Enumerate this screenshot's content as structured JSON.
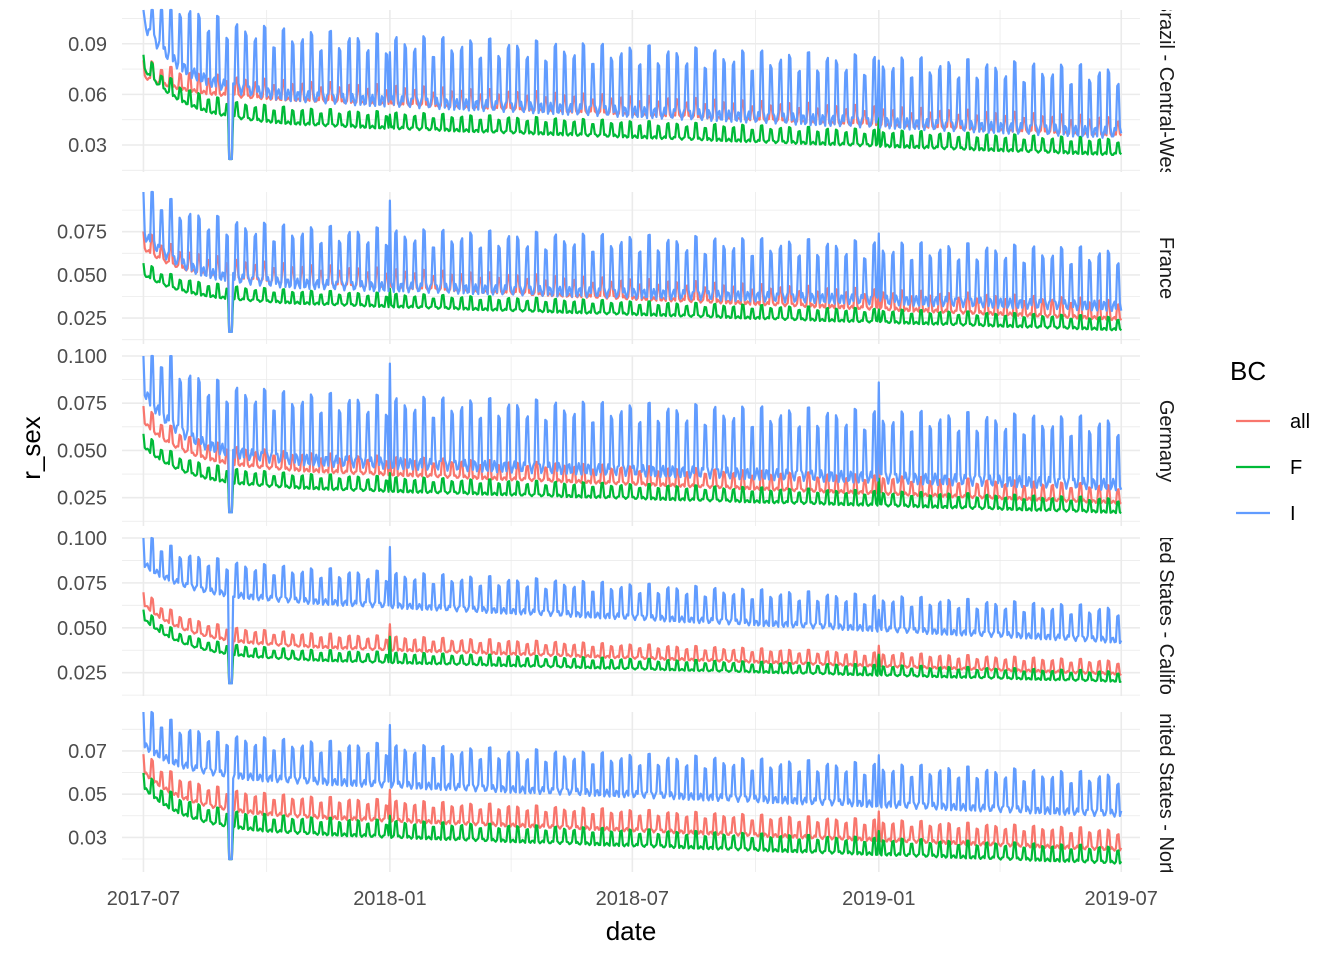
{
  "chart_data": {
    "type": "line",
    "xlabel": "date",
    "ylabel": "r_sex",
    "legend": {
      "title": "BC",
      "position": "right",
      "items": [
        {
          "name": "all",
          "color": "#F8766D"
        },
        {
          "name": "F",
          "color": "#00BA38"
        },
        {
          "name": "I",
          "color": "#619CFF"
        }
      ]
    },
    "x_ticks": [
      "2017-07",
      "2018-01",
      "2018-07",
      "2019-01",
      "2019-07"
    ],
    "x_range": [
      "2017-06-15",
      "2019-07-15"
    ],
    "grid": true,
    "facets": [
      {
        "strip": "Brazil - Central-West",
        "ylim": [
          0.014,
          0.11
        ],
        "y_ticks": [
          0.03,
          0.06,
          0.09
        ],
        "y_tick_labels": [
          "0.03",
          "0.06",
          "0.09"
        ],
        "series": [
          {
            "name": "all",
            "base_start": 0.06,
            "base_end": 0.035,
            "amp": 0.012,
            "early": 0.07
          },
          {
            "name": "F",
            "base_start": 0.045,
            "base_end": 0.024,
            "amp": 0.01,
            "early": 0.075
          },
          {
            "name": "I",
            "base_start": 0.06,
            "base_end": 0.035,
            "amp": 0.042,
            "early": 0.1
          }
        ],
        "spikes": [
          {
            "date": "2018-01-01",
            "all": 0.06,
            "F": 0.048,
            "I": 0.085
          },
          {
            "date": "2019-01-01",
            "all": 0.055,
            "F": 0.046,
            "I": 0.08
          }
        ]
      },
      {
        "strip": "France",
        "ylim": [
          0.01,
          0.098
        ],
        "y_ticks": [
          0.025,
          0.05,
          0.075
        ],
        "y_tick_labels": [
          "0.025",
          "0.050",
          "0.075"
        ],
        "series": [
          {
            "name": "all",
            "base_start": 0.048,
            "base_end": 0.024,
            "amp": 0.012,
            "early": 0.065
          },
          {
            "name": "F",
            "base_start": 0.036,
            "base_end": 0.018,
            "amp": 0.008,
            "early": 0.05
          },
          {
            "name": "I",
            "base_start": 0.045,
            "base_end": 0.03,
            "amp": 0.036,
            "early": 0.072
          }
        ],
        "spikes": [
          {
            "date": "2018-01-01",
            "all": 0.058,
            "F": 0.042,
            "I": 0.093
          },
          {
            "date": "2019-01-01",
            "all": 0.042,
            "F": 0.03,
            "I": 0.074
          }
        ]
      },
      {
        "strip": "Germany",
        "ylim": [
          0.01,
          0.1
        ],
        "y_ticks": [
          0.025,
          0.05,
          0.075,
          0.1
        ],
        "y_tick_labels": [
          "0.025",
          "0.050",
          "0.075",
          "0.100"
        ],
        "series": [
          {
            "name": "all",
            "base_start": 0.042,
            "base_end": 0.022,
            "amp": 0.01,
            "early": 0.065
          },
          {
            "name": "F",
            "base_start": 0.032,
            "base_end": 0.017,
            "amp": 0.008,
            "early": 0.052
          },
          {
            "name": "I",
            "base_start": 0.045,
            "base_end": 0.03,
            "amp": 0.038,
            "early": 0.08
          }
        ],
        "spikes": [
          {
            "date": "2018-01-01",
            "all": 0.05,
            "F": 0.038,
            "I": 0.096
          },
          {
            "date": "2019-01-01",
            "all": 0.048,
            "F": 0.035,
            "I": 0.086
          }
        ]
      },
      {
        "strip": "United States - California",
        "ylim": [
          0.012,
          0.1
        ],
        "y_ticks": [
          0.025,
          0.05,
          0.075,
          0.1
        ],
        "y_tick_labels": [
          "0.025",
          "0.050",
          "0.075",
          "0.100"
        ],
        "series": [
          {
            "name": "all",
            "base_start": 0.042,
            "base_end": 0.024,
            "amp": 0.008,
            "early": 0.063
          },
          {
            "name": "F",
            "base_start": 0.034,
            "base_end": 0.02,
            "amp": 0.006,
            "early": 0.055
          },
          {
            "name": "I",
            "base_start": 0.068,
            "base_end": 0.042,
            "amp": 0.02,
            "early": 0.085
          }
        ],
        "spikes": [
          {
            "date": "2018-01-01",
            "all": 0.052,
            "F": 0.045,
            "I": 0.095
          },
          {
            "date": "2019-01-01",
            "all": 0.04,
            "F": 0.035,
            "I": 0.06
          }
        ]
      },
      {
        "strip": "United States - North",
        "ylim": [
          0.014,
          0.088
        ],
        "y_ticks": [
          0.03,
          0.05,
          0.07
        ],
        "y_tick_labels": [
          "0.03",
          "0.05",
          "0.07"
        ],
        "series": [
          {
            "name": "all",
            "base_start": 0.042,
            "base_end": 0.024,
            "amp": 0.01,
            "early": 0.06
          },
          {
            "name": "F",
            "base_start": 0.034,
            "base_end": 0.018,
            "amp": 0.008,
            "early": 0.053
          },
          {
            "name": "I",
            "base_start": 0.058,
            "base_end": 0.04,
            "amp": 0.02,
            "early": 0.072
          }
        ],
        "spikes": [
          {
            "date": "2018-01-01",
            "all": 0.052,
            "F": 0.04,
            "I": 0.082
          },
          {
            "date": "2019-01-01",
            "all": 0.042,
            "F": 0.033,
            "I": 0.068
          }
        ]
      }
    ]
  }
}
